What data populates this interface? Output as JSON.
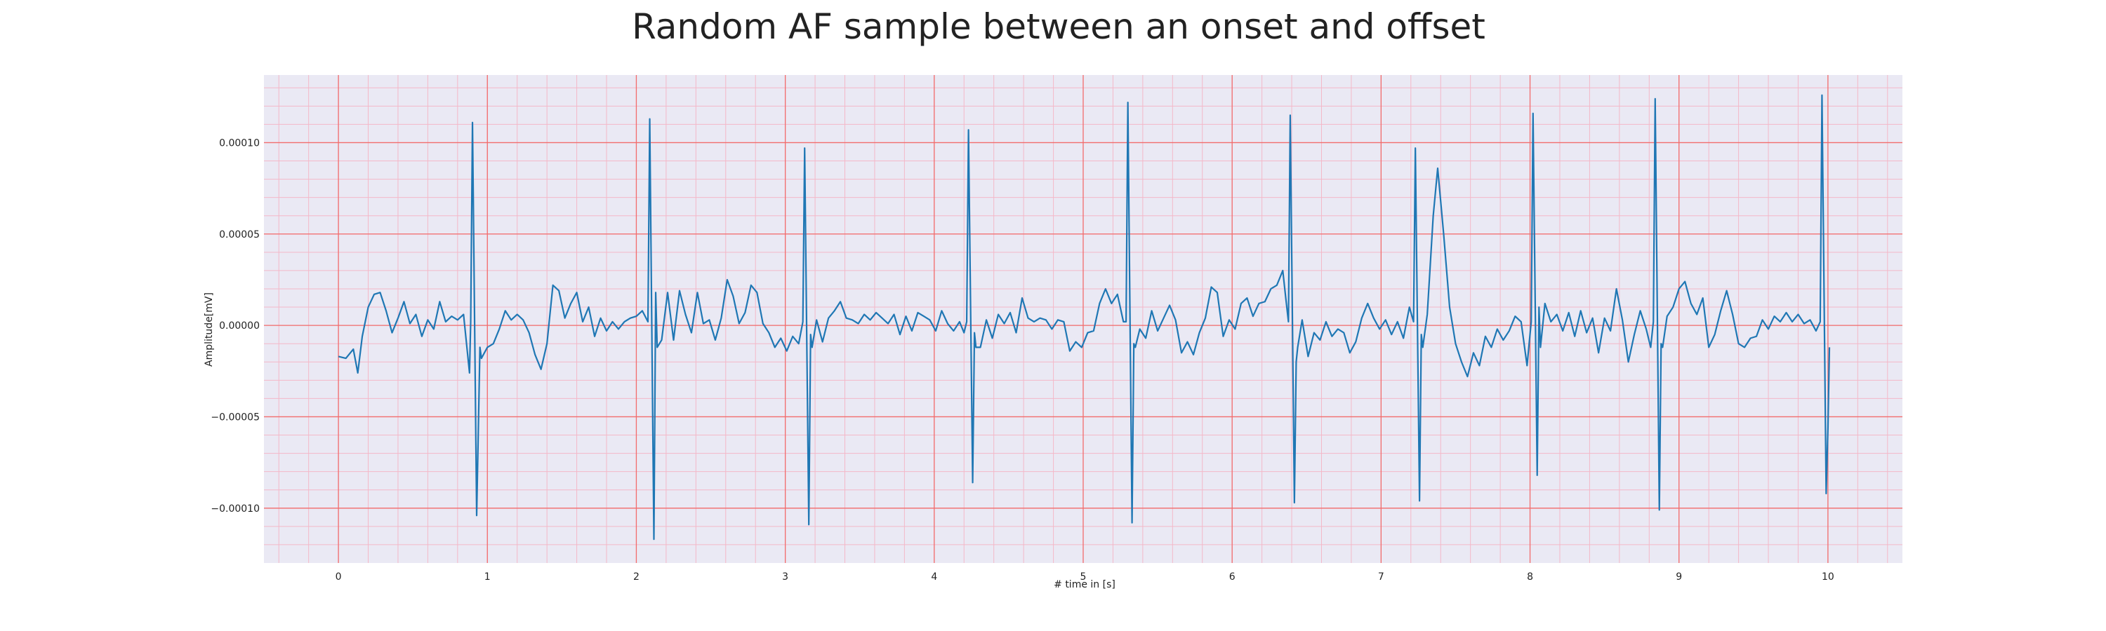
{
  "chart_data": {
    "type": "line",
    "title": "Random AF sample between an onset and offset",
    "xlabel": "# time in [s]",
    "ylabel": "Amplitude[mV]",
    "xlim": [
      -0.5,
      10.5
    ],
    "ylim": [
      -0.00013,
      0.000137
    ],
    "xticks": [
      0,
      1,
      2,
      3,
      4,
      5,
      6,
      7,
      8,
      9,
      10
    ],
    "xtick_labels": [
      "0",
      "1",
      "2",
      "3",
      "4",
      "5",
      "6",
      "7",
      "8",
      "9",
      "10"
    ],
    "yticks": [
      -0.0001,
      -5e-05,
      0,
      5e-05,
      0.0001
    ],
    "ytick_labels": [
      "−0.00010",
      "−0.00005",
      "0.00000",
      "0.00005",
      "0.00010"
    ],
    "grid": "on",
    "legend": "none",
    "colors": {
      "line": "#1f77b4",
      "plot_background": "#eae9f4",
      "major_grid": "#f26c6c",
      "minor_grid": "#f4b8c8"
    },
    "series": [
      {
        "peaks": [
          {
            "t": 0.9,
            "r": 0.000111,
            "s": -0.000104
          },
          {
            "t": 2.09,
            "r": 0.000113,
            "s": -0.000117
          },
          {
            "t": 3.13,
            "r": 9.7e-05,
            "s": -0.000109
          },
          {
            "t": 4.23,
            "r": 0.000107,
            "s": -8.6e-05
          },
          {
            "t": 5.3,
            "r": 0.000122,
            "s": -0.000108
          },
          {
            "t": 6.39,
            "r": 0.000115,
            "s": -9.7e-05
          },
          {
            "t": 7.23,
            "r": 9.7e-05,
            "s": -9.6e-05
          },
          {
            "t": 8.02,
            "r": 0.000116,
            "s": -8.2e-05
          },
          {
            "t": 8.84,
            "r": 0.000124,
            "s": -0.000101
          },
          {
            "t": 9.96,
            "r": 0.000126,
            "s": -9.2e-05
          }
        ],
        "baseline": [
          [
            0.0,
            -1.7e-05
          ],
          [
            0.05,
            -1.8e-05
          ],
          [
            0.1,
            -1.3e-05
          ],
          [
            0.13,
            -2.6e-05
          ],
          [
            0.16,
            -6e-06
          ],
          [
            0.2,
            1e-05
          ],
          [
            0.24,
            1.7e-05
          ],
          [
            0.28,
            1.8e-05
          ],
          [
            0.32,
            8e-06
          ],
          [
            0.36,
            -4e-06
          ],
          [
            0.4,
            4e-06
          ],
          [
            0.44,
            1.3e-05
          ],
          [
            0.48,
            1e-06
          ],
          [
            0.52,
            6e-06
          ],
          [
            0.56,
            -6e-06
          ],
          [
            0.6,
            3e-06
          ],
          [
            0.64,
            -2e-06
          ],
          [
            0.68,
            1.3e-05
          ],
          [
            0.72,
            2e-06
          ],
          [
            0.76,
            5e-06
          ],
          [
            0.8,
            3e-06
          ],
          [
            0.84,
            6e-06
          ],
          [
            0.88,
            -2.6e-05
          ],
          [
            0.96,
            -1.8e-05
          ],
          [
            1.0,
            -1.2e-05
          ],
          [
            1.04,
            -1e-05
          ],
          [
            1.08,
            -2e-06
          ],
          [
            1.12,
            8e-06
          ],
          [
            1.16,
            3e-06
          ],
          [
            1.2,
            6e-06
          ],
          [
            1.24,
            3e-06
          ],
          [
            1.28,
            -4e-06
          ],
          [
            1.32,
            -1.6e-05
          ],
          [
            1.36,
            -2.4e-05
          ],
          [
            1.4,
            -1e-05
          ],
          [
            1.44,
            2.2e-05
          ],
          [
            1.48,
            1.9e-05
          ],
          [
            1.52,
            4e-06
          ],
          [
            1.56,
            1.2e-05
          ],
          [
            1.6,
            1.8e-05
          ],
          [
            1.64,
            2e-06
          ],
          [
            1.68,
            1e-05
          ],
          [
            1.72,
            -6e-06
          ],
          [
            1.76,
            4e-06
          ],
          [
            1.8,
            -3e-06
          ],
          [
            1.84,
            2e-06
          ],
          [
            1.88,
            -2e-06
          ],
          [
            1.92,
            2e-06
          ],
          [
            1.96,
            4e-06
          ],
          [
            2.0,
            5e-06
          ],
          [
            2.04,
            8e-06
          ],
          [
            2.13,
            1.8e-05
          ],
          [
            2.17,
            -8e-06
          ],
          [
            2.21,
            1.8e-05
          ],
          [
            2.25,
            -8e-06
          ],
          [
            2.29,
            1.9e-05
          ],
          [
            2.33,
            6e-06
          ],
          [
            2.37,
            -4e-06
          ],
          [
            2.41,
            1.8e-05
          ],
          [
            2.45,
            1e-06
          ],
          [
            2.49,
            3e-06
          ],
          [
            2.53,
            -8e-06
          ],
          [
            2.57,
            4e-06
          ],
          [
            2.61,
            2.5e-05
          ],
          [
            2.65,
            1.6e-05
          ],
          [
            2.69,
            1e-06
          ],
          [
            2.73,
            7e-06
          ],
          [
            2.77,
            2.2e-05
          ],
          [
            2.81,
            1.8e-05
          ],
          [
            2.85,
            1e-06
          ],
          [
            2.89,
            -4e-06
          ],
          [
            2.93,
            -1.2e-05
          ],
          [
            2.97,
            -7e-06
          ],
          [
            3.01,
            -1.4e-05
          ],
          [
            3.05,
            -6e-06
          ],
          [
            3.09,
            -1e-05
          ],
          [
            3.17,
            -5e-06
          ],
          [
            3.21,
            3e-06
          ],
          [
            3.25,
            -9e-06
          ],
          [
            3.29,
            4e-06
          ],
          [
            3.33,
            8e-06
          ],
          [
            3.37,
            1.3e-05
          ],
          [
            3.41,
            4e-06
          ],
          [
            3.45,
            3e-06
          ],
          [
            3.49,
            1e-06
          ],
          [
            3.53,
            6e-06
          ],
          [
            3.57,
            3e-06
          ],
          [
            3.61,
            7e-06
          ],
          [
            3.65,
            4e-06
          ],
          [
            3.69,
            1e-06
          ],
          [
            3.73,
            6e-06
          ],
          [
            3.77,
            -5e-06
          ],
          [
            3.81,
            5e-06
          ],
          [
            3.85,
            -3e-06
          ],
          [
            3.89,
            7e-06
          ],
          [
            3.93,
            5e-06
          ],
          [
            3.97,
            3e-06
          ],
          [
            4.01,
            -3e-06
          ],
          [
            4.05,
            8e-06
          ],
          [
            4.09,
            1e-06
          ],
          [
            4.13,
            -3e-06
          ],
          [
            4.17,
            2e-06
          ],
          [
            4.2,
            -4e-06
          ],
          [
            4.27,
            -4e-06
          ],
          [
            4.31,
            -1.2e-05
          ],
          [
            4.35,
            3e-06
          ],
          [
            4.39,
            -7e-06
          ],
          [
            4.43,
            6e-06
          ],
          [
            4.47,
            1e-06
          ],
          [
            4.51,
            7e-06
          ],
          [
            4.55,
            -4e-06
          ],
          [
            4.59,
            1.5e-05
          ],
          [
            4.63,
            4e-06
          ],
          [
            4.67,
            2e-06
          ],
          [
            4.71,
            4e-06
          ],
          [
            4.75,
            3e-06
          ],
          [
            4.79,
            -2e-06
          ],
          [
            4.83,
            3e-06
          ],
          [
            4.87,
            2e-06
          ],
          [
            4.91,
            -1.4e-05
          ],
          [
            4.95,
            -9e-06
          ],
          [
            4.99,
            -1.2e-05
          ],
          [
            5.03,
            -4e-06
          ],
          [
            5.07,
            -3e-06
          ],
          [
            5.11,
            1.2e-05
          ],
          [
            5.15,
            2e-05
          ],
          [
            5.19,
            1.2e-05
          ],
          [
            5.23,
            1.7e-05
          ],
          [
            5.27,
            2e-06
          ],
          [
            5.34,
            -1e-05
          ],
          [
            5.38,
            -2e-06
          ],
          [
            5.42,
            -7e-06
          ],
          [
            5.46,
            8e-06
          ],
          [
            5.5,
            -3e-06
          ],
          [
            5.54,
            4e-06
          ],
          [
            5.58,
            1.1e-05
          ],
          [
            5.62,
            3e-06
          ],
          [
            5.66,
            -1.5e-05
          ],
          [
            5.7,
            -9e-06
          ],
          [
            5.74,
            -1.6e-05
          ],
          [
            5.78,
            -4e-06
          ],
          [
            5.82,
            4e-06
          ],
          [
            5.86,
            2.1e-05
          ],
          [
            5.9,
            1.8e-05
          ],
          [
            5.94,
            -6e-06
          ],
          [
            5.98,
            3e-06
          ],
          [
            6.02,
            -2e-06
          ],
          [
            6.06,
            1.2e-05
          ],
          [
            6.1,
            1.5e-05
          ],
          [
            6.14,
            5e-06
          ],
          [
            6.18,
            1.2e-05
          ],
          [
            6.22,
            1.3e-05
          ],
          [
            6.26,
            2e-05
          ],
          [
            6.3,
            2.2e-05
          ],
          [
            6.34,
            3e-05
          ],
          [
            6.36,
            1.5e-05
          ],
          [
            6.43,
            -2e-05
          ],
          [
            6.47,
            3e-06
          ],
          [
            6.51,
            -1.7e-05
          ],
          [
            6.55,
            -4e-06
          ],
          [
            6.59,
            -8e-06
          ],
          [
            6.63,
            2e-06
          ],
          [
            6.67,
            -6e-06
          ],
          [
            6.71,
            -2e-06
          ],
          [
            6.75,
            -4e-06
          ],
          [
            6.79,
            -1.5e-05
          ],
          [
            6.83,
            -9e-06
          ],
          [
            6.87,
            4e-06
          ],
          [
            6.91,
            1.2e-05
          ],
          [
            6.95,
            4e-06
          ],
          [
            6.99,
            -2e-06
          ],
          [
            7.03,
            3e-06
          ],
          [
            7.07,
            -5e-06
          ],
          [
            7.11,
            2e-06
          ],
          [
            7.15,
            -7e-06
          ],
          [
            7.19,
            1e-05
          ],
          [
            7.27,
            -5e-06
          ],
          [
            7.31,
            6e-06
          ],
          [
            7.35,
            6e-05
          ],
          [
            7.38,
            8.6e-05
          ],
          [
            7.42,
            5e-05
          ],
          [
            7.46,
            1e-05
          ],
          [
            7.5,
            -1e-05
          ],
          [
            7.54,
            -2e-05
          ],
          [
            7.58,
            -2.8e-05
          ],
          [
            7.62,
            -1.5e-05
          ],
          [
            7.66,
            -2.2e-05
          ],
          [
            7.7,
            -6e-06
          ],
          [
            7.74,
            -1.2e-05
          ],
          [
            7.78,
            -2e-06
          ],
          [
            7.82,
            -8e-06
          ],
          [
            7.86,
            -3e-06
          ],
          [
            7.9,
            5e-06
          ],
          [
            7.94,
            2e-06
          ],
          [
            7.98,
            -2.2e-05
          ],
          [
            8.06,
            1e-05
          ],
          [
            8.1,
            1.2e-05
          ],
          [
            8.14,
            2e-06
          ],
          [
            8.18,
            6e-06
          ],
          [
            8.22,
            -3e-06
          ],
          [
            8.26,
            7e-06
          ],
          [
            8.3,
            -6e-06
          ],
          [
            8.34,
            8e-06
          ],
          [
            8.38,
            -4e-06
          ],
          [
            8.42,
            4e-06
          ],
          [
            8.46,
            -1.5e-05
          ],
          [
            8.5,
            4e-06
          ],
          [
            8.54,
            -3e-06
          ],
          [
            8.58,
            2e-05
          ],
          [
            8.62,
            3e-06
          ],
          [
            8.66,
            -2e-05
          ],
          [
            8.7,
            -5e-06
          ],
          [
            8.74,
            8e-06
          ],
          [
            8.78,
            -2e-06
          ],
          [
            8.81,
            -1.2e-05
          ],
          [
            8.88,
            -1e-05
          ],
          [
            8.92,
            5e-06
          ],
          [
            8.96,
            1e-05
          ],
          [
            9.0,
            2e-05
          ],
          [
            9.04,
            2.4e-05
          ],
          [
            9.08,
            1.2e-05
          ],
          [
            9.12,
            6e-06
          ],
          [
            9.16,
            1.5e-05
          ],
          [
            9.2,
            -1.2e-05
          ],
          [
            9.24,
            -5e-06
          ],
          [
            9.28,
            8e-06
          ],
          [
            9.32,
            1.9e-05
          ],
          [
            9.36,
            6e-06
          ],
          [
            9.4,
            -1e-05
          ],
          [
            9.44,
            -1.2e-05
          ],
          [
            9.48,
            -7e-06
          ],
          [
            9.52,
            -6e-06
          ],
          [
            9.56,
            3e-06
          ],
          [
            9.6,
            -2e-06
          ],
          [
            9.64,
            5e-06
          ],
          [
            9.68,
            2e-06
          ],
          [
            9.72,
            7e-06
          ],
          [
            9.76,
            2e-06
          ],
          [
            9.8,
            6e-06
          ],
          [
            9.84,
            1e-06
          ],
          [
            9.88,
            3e-06
          ],
          [
            9.92,
            -3e-06
          ],
          [
            10.0,
            -5.6e-05
          ]
        ]
      }
    ]
  }
}
